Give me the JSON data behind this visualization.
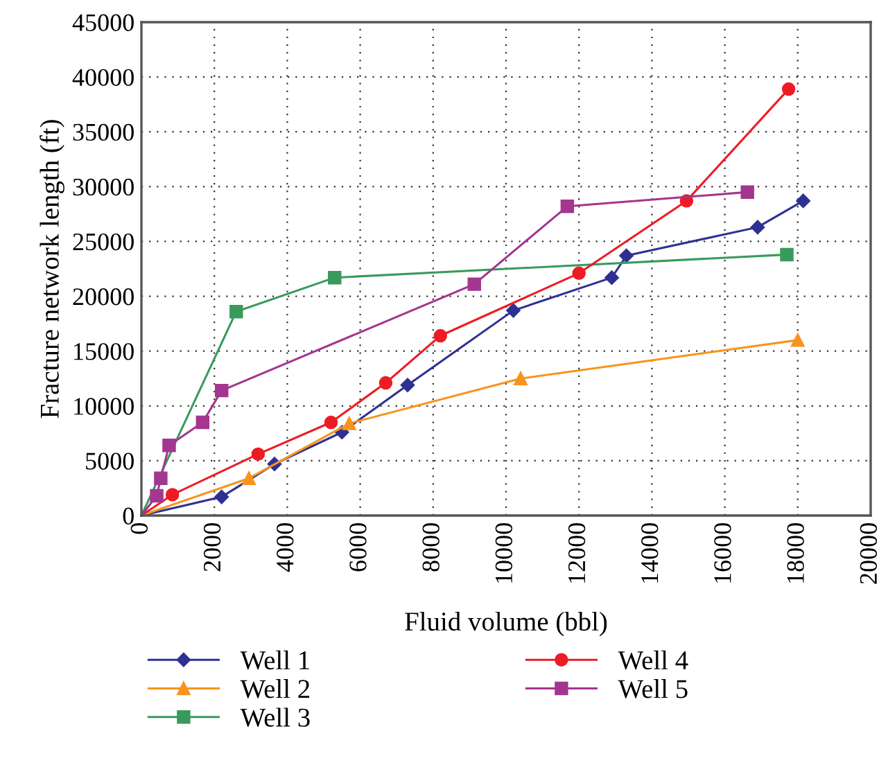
{
  "chart_data": {
    "type": "line",
    "xlabel": "Fluid volume (bbl)",
    "ylabel": "Fracture network length (ft)",
    "xlim": [
      0,
      20000
    ],
    "xticks": [
      0,
      2000,
      4000,
      6000,
      8000,
      10000,
      12000,
      14000,
      16000,
      18000,
      20000
    ],
    "ylim": [
      0,
      45000
    ],
    "yticks": [
      0,
      5000,
      10000,
      15000,
      20000,
      25000,
      30000,
      35000,
      40000,
      45000
    ],
    "grid": true,
    "legend": "bottom",
    "series": [
      {
        "name": "Well 1",
        "color": "#2e3192",
        "marker": "diamond",
        "x": [
          0,
          2200,
          3650,
          5500,
          7300,
          10200,
          12900,
          13300,
          16900,
          18150
        ],
        "values": [
          0,
          1700,
          4700,
          7600,
          11900,
          18700,
          21700,
          23700,
          26300,
          28700
        ]
      },
      {
        "name": "Well 2",
        "color": "#f7941d",
        "marker": "triangle",
        "x": [
          0,
          2950,
          5700,
          10400,
          18000
        ],
        "values": [
          0,
          3400,
          8400,
          12500,
          16000
        ]
      },
      {
        "name": "Well 3",
        "color": "#3a9a5c",
        "marker": "square",
        "x": [
          0,
          2600,
          5300,
          17700
        ],
        "values": [
          0,
          18600,
          21700,
          23800
        ]
      },
      {
        "name": "Well 4",
        "color": "#ed1c24",
        "marker": "circle",
        "x": [
          0,
          850,
          3200,
          5200,
          6700,
          8200,
          12000,
          14950,
          17750
        ],
        "values": [
          0,
          1900,
          5600,
          8500,
          12100,
          16400,
          22100,
          28700,
          38900
        ]
      },
      {
        "name": "Well 5",
        "color": "#a3368f",
        "marker": "square",
        "x": [
          0,
          420,
          530,
          760,
          1680,
          2200,
          9130,
          11680,
          16620
        ],
        "values": [
          0,
          1800,
          3400,
          6400,
          8500,
          11400,
          21100,
          28200,
          29500
        ]
      }
    ]
  }
}
